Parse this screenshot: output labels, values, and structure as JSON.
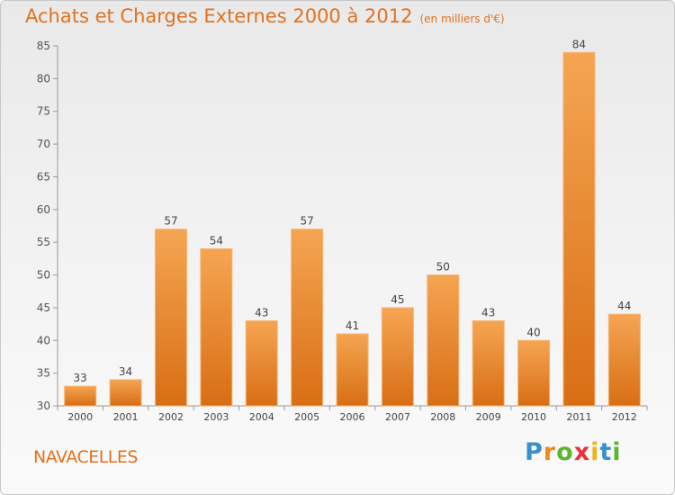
{
  "header": {
    "title": "Achats et Charges Externes 2000 à 2012",
    "unit": "(en milliers d'€)"
  },
  "footer": {
    "place": "NAVACELLES",
    "brand": {
      "letters": [
        "P",
        "r",
        "o",
        "x",
        "i",
        "t",
        "i"
      ],
      "colors": [
        "#3a8fd1",
        "#f08a1c",
        "#5bb531",
        "#e8323c",
        "#f0b41c",
        "#3a8fd1",
        "#5bb531"
      ]
    }
  },
  "chart_data": {
    "type": "bar",
    "categories": [
      "2000",
      "2001",
      "2002",
      "2003",
      "2004",
      "2005",
      "2006",
      "2007",
      "2008",
      "2009",
      "2010",
      "2011",
      "2012"
    ],
    "values": [
      33,
      34,
      57,
      54,
      43,
      57,
      41,
      45,
      50,
      43,
      40,
      84,
      44
    ],
    "ylim": [
      30,
      85
    ],
    "yticks": [
      30,
      35,
      40,
      45,
      50,
      55,
      60,
      65,
      70,
      75,
      80,
      85
    ],
    "grid": false,
    "bar_color": "#f0922e"
  }
}
